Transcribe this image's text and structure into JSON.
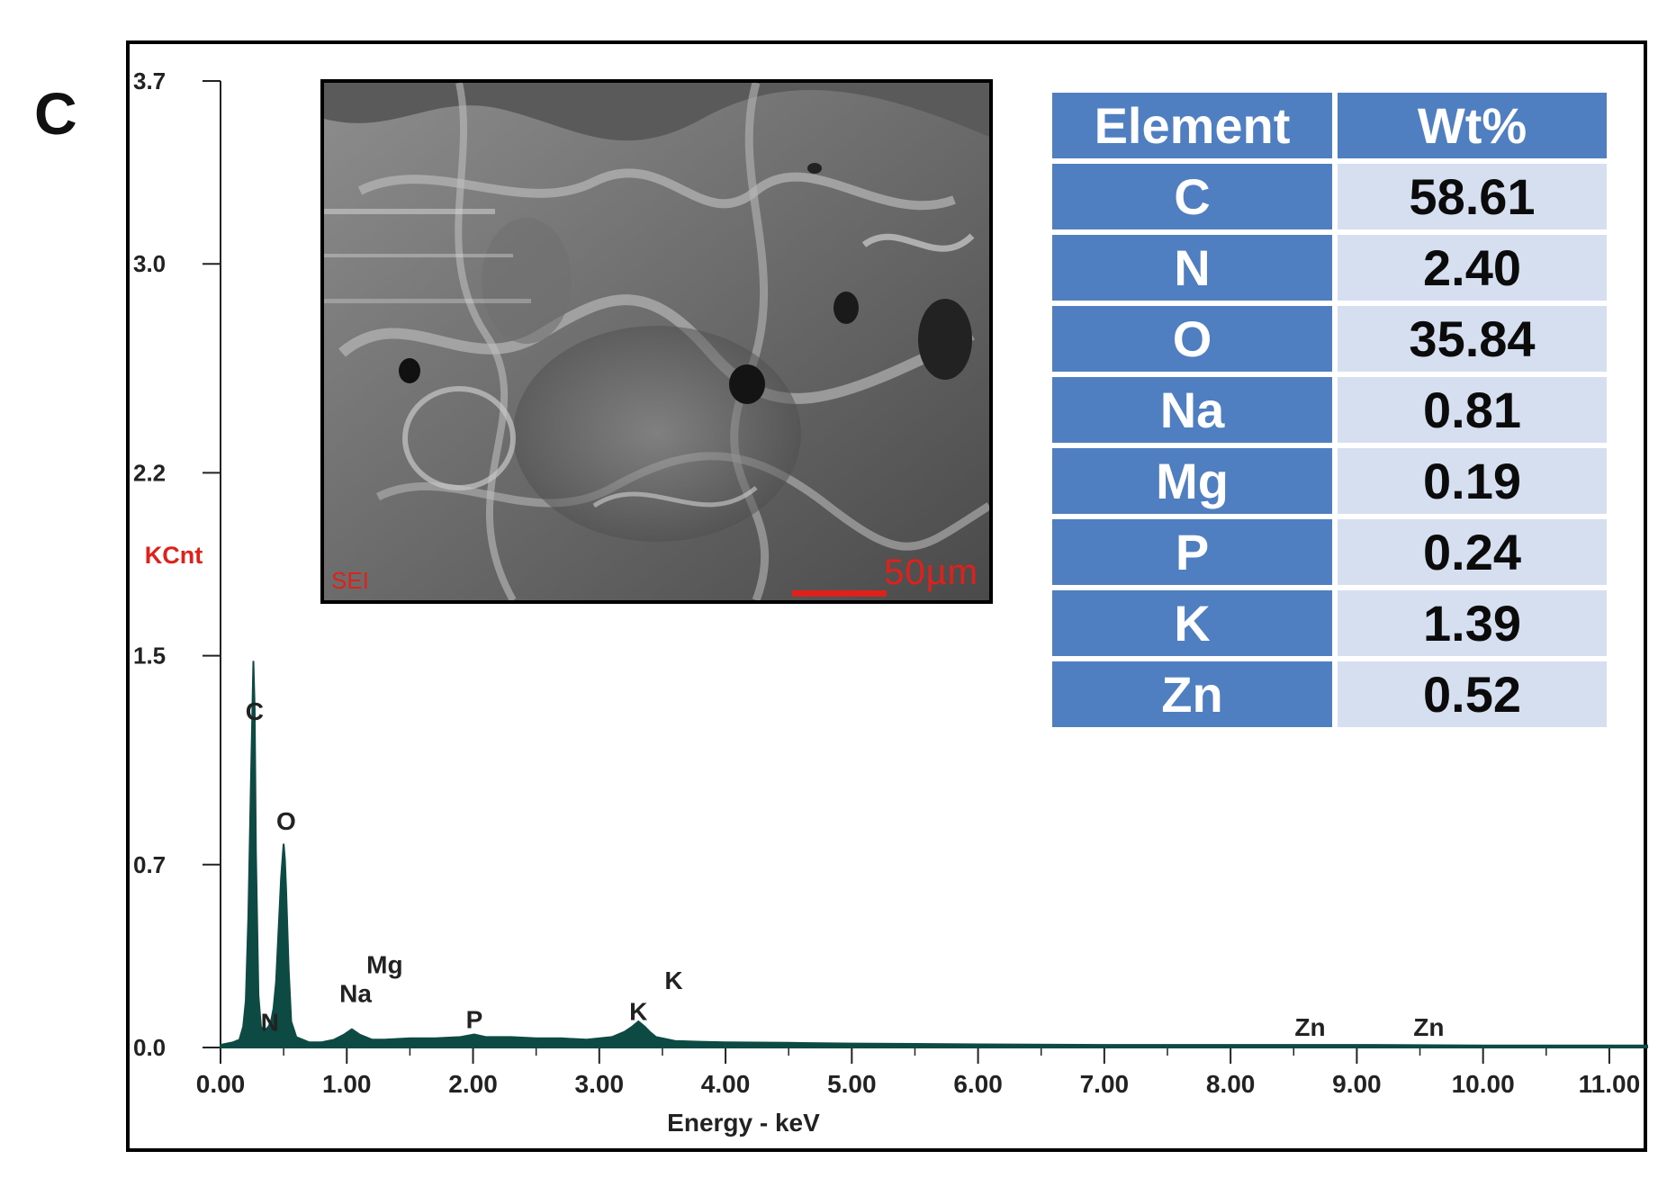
{
  "panel_label": "C",
  "chart_data": {
    "type": "line",
    "xlabel": "Energy - keV",
    "ylabel": "KCnt",
    "xlim": [
      0,
      11.3
    ],
    "ylim": [
      0,
      3.7
    ],
    "x_ticks": [
      "0.00",
      "1.00",
      "2.00",
      "3.00",
      "4.00",
      "5.00",
      "6.00",
      "7.00",
      "8.00",
      "9.00",
      "10.00",
      "11.00"
    ],
    "y_ticks": [
      "0.0",
      "0.7",
      "1.5",
      "2.2",
      "3.0",
      "3.7"
    ],
    "series": [
      {
        "x": [
          0.0,
          0.1,
          0.15,
          0.18,
          0.2,
          0.22,
          0.24,
          0.26,
          0.27,
          0.28,
          0.3,
          0.32,
          0.34,
          0.36,
          0.38,
          0.4,
          0.42,
          0.44,
          0.46,
          0.48,
          0.5,
          0.51,
          0.52,
          0.54,
          0.56,
          0.6,
          0.7,
          0.8,
          0.9,
          0.98,
          1.04,
          1.1,
          1.2,
          1.3,
          1.5,
          1.7,
          1.9,
          2.01,
          2.1,
          2.3,
          2.5,
          2.7,
          2.9,
          3.1,
          3.2,
          3.26,
          3.31,
          3.36,
          3.4,
          3.45,
          3.6,
          3.8,
          4.0,
          4.5,
          5.0,
          6.0,
          7.0,
          8.0,
          9.0,
          10.0,
          11.3
        ],
        "y": [
          0.01,
          0.02,
          0.03,
          0.08,
          0.18,
          0.5,
          1.0,
          1.48,
          1.3,
          0.75,
          0.2,
          0.08,
          0.06,
          0.07,
          0.08,
          0.1,
          0.15,
          0.25,
          0.45,
          0.65,
          0.78,
          0.72,
          0.6,
          0.3,
          0.1,
          0.04,
          0.02,
          0.02,
          0.03,
          0.05,
          0.07,
          0.05,
          0.03,
          0.03,
          0.035,
          0.035,
          0.04,
          0.05,
          0.04,
          0.04,
          0.035,
          0.035,
          0.03,
          0.04,
          0.06,
          0.08,
          0.1,
          0.08,
          0.06,
          0.04,
          0.025,
          0.022,
          0.02,
          0.018,
          0.015,
          0.012,
          0.01,
          0.01,
          0.01,
          0.008,
          0.008
        ],
        "color": "#0d4a44"
      }
    ],
    "peak_labels": [
      {
        "label": "C",
        "x": 0.27,
        "y": 1.22
      },
      {
        "label": "N",
        "x": 0.39,
        "y": 0.03
      },
      {
        "label": "O",
        "x": 0.52,
        "y": 0.8
      },
      {
        "label": "Na",
        "x": 1.07,
        "y": 0.14
      },
      {
        "label": "Mg",
        "x": 1.3,
        "y": 0.25
      },
      {
        "label": "P",
        "x": 2.01,
        "y": 0.04
      },
      {
        "label": "K",
        "x": 3.31,
        "y": 0.07
      },
      {
        "label": "K",
        "x": 3.59,
        "y": 0.19
      },
      {
        "label": "Zn",
        "x": 8.63,
        "y": 0.01
      },
      {
        "label": "Zn",
        "x": 9.57,
        "y": 0.01
      }
    ],
    "axis_label_color": "#e0201a"
  },
  "sem_image": {
    "label": "SEI",
    "scale": "50µm",
    "label_color": "#e0201a"
  },
  "composition_table": {
    "headers": [
      "Element",
      "Wt%"
    ],
    "rows": [
      {
        "element": "C",
        "wt": "58.61"
      },
      {
        "element": "N",
        "wt": "2.40"
      },
      {
        "element": "O",
        "wt": "35.84"
      },
      {
        "element": "Na",
        "wt": "0.81"
      },
      {
        "element": "Mg",
        "wt": "0.19"
      },
      {
        "element": "P",
        "wt": "0.24"
      },
      {
        "element": "K",
        "wt": "1.39"
      },
      {
        "element": "Zn",
        "wt": "0.52"
      }
    ],
    "header_color": "#4f7ec1",
    "cell_color": "#d6dff0"
  }
}
